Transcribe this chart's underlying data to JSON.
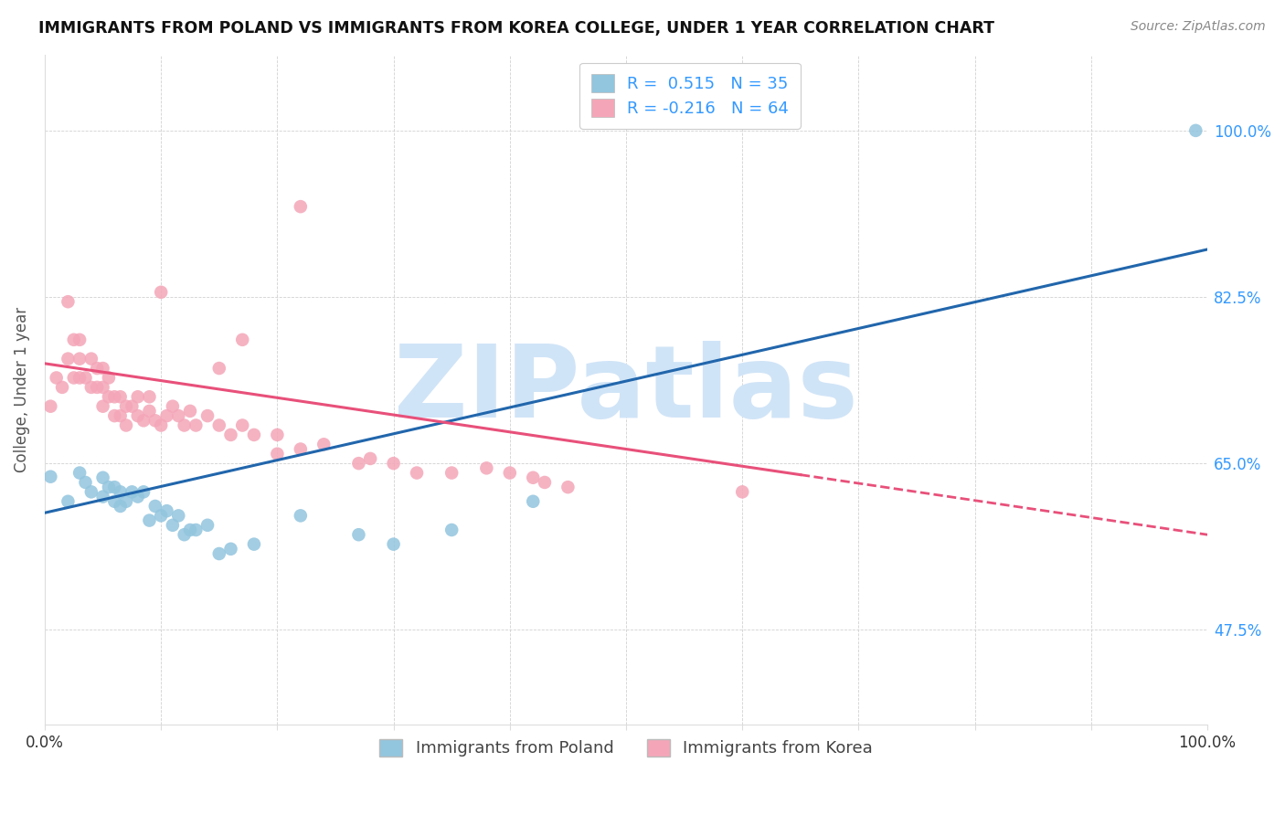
{
  "title": "IMMIGRANTS FROM POLAND VS IMMIGRANTS FROM KOREA COLLEGE, UNDER 1 YEAR CORRELATION CHART",
  "source": "Source: ZipAtlas.com",
  "ylabel": "College, Under 1 year",
  "ylabel_ticks": [
    "47.5%",
    "65.0%",
    "82.5%",
    "100.0%"
  ],
  "ylabel_tick_values": [
    0.475,
    0.65,
    0.825,
    1.0
  ],
  "xmin": 0.0,
  "xmax": 1.0,
  "ymin": 0.375,
  "ymax": 1.08,
  "R_poland": 0.515,
  "N_poland": 35,
  "R_korea": -0.216,
  "N_korea": 64,
  "color_poland": "#92c5de",
  "color_korea": "#f4a6b8",
  "color_poland_line": "#2166ac",
  "color_korea_line": "#e8507a",
  "watermark_color": "#d0e4f7",
  "poland_x": [
    0.005,
    0.02,
    0.03,
    0.035,
    0.04,
    0.05,
    0.05,
    0.055,
    0.06,
    0.06,
    0.065,
    0.065,
    0.07,
    0.075,
    0.08,
    0.085,
    0.09,
    0.095,
    0.1,
    0.105,
    0.11,
    0.115,
    0.12,
    0.125,
    0.13,
    0.14,
    0.15,
    0.16,
    0.18,
    0.22,
    0.27,
    0.3,
    0.35,
    0.42,
    0.99
  ],
  "poland_y": [
    0.636,
    0.61,
    0.64,
    0.63,
    0.62,
    0.615,
    0.635,
    0.625,
    0.61,
    0.625,
    0.605,
    0.62,
    0.61,
    0.62,
    0.615,
    0.62,
    0.59,
    0.605,
    0.595,
    0.6,
    0.585,
    0.595,
    0.575,
    0.58,
    0.58,
    0.585,
    0.555,
    0.56,
    0.565,
    0.595,
    0.575,
    0.565,
    0.58,
    0.61,
    1.0
  ],
  "korea_x": [
    0.005,
    0.01,
    0.015,
    0.02,
    0.02,
    0.025,
    0.025,
    0.03,
    0.03,
    0.03,
    0.035,
    0.04,
    0.04,
    0.045,
    0.045,
    0.05,
    0.05,
    0.05,
    0.055,
    0.055,
    0.06,
    0.06,
    0.065,
    0.065,
    0.07,
    0.07,
    0.075,
    0.08,
    0.08,
    0.085,
    0.09,
    0.09,
    0.095,
    0.1,
    0.105,
    0.11,
    0.115,
    0.12,
    0.125,
    0.13,
    0.14,
    0.15,
    0.16,
    0.17,
    0.18,
    0.2,
    0.22,
    0.24,
    0.27,
    0.28,
    0.3,
    0.32,
    0.35,
    0.38,
    0.4,
    0.42,
    0.43,
    0.45,
    0.15,
    0.2,
    0.1,
    0.17,
    0.22,
    0.6
  ],
  "korea_y": [
    0.71,
    0.74,
    0.73,
    0.76,
    0.82,
    0.74,
    0.78,
    0.74,
    0.76,
    0.78,
    0.74,
    0.73,
    0.76,
    0.73,
    0.75,
    0.71,
    0.73,
    0.75,
    0.72,
    0.74,
    0.7,
    0.72,
    0.7,
    0.72,
    0.69,
    0.71,
    0.71,
    0.7,
    0.72,
    0.695,
    0.705,
    0.72,
    0.695,
    0.69,
    0.7,
    0.71,
    0.7,
    0.69,
    0.705,
    0.69,
    0.7,
    0.69,
    0.68,
    0.69,
    0.68,
    0.66,
    0.665,
    0.67,
    0.65,
    0.655,
    0.65,
    0.64,
    0.64,
    0.645,
    0.64,
    0.635,
    0.63,
    0.625,
    0.75,
    0.68,
    0.83,
    0.78,
    0.92,
    0.62
  ],
  "grid_color": "#cccccc",
  "poland_line_start_y": 0.598,
  "poland_line_end_y": 0.875,
  "korea_line_start_y": 0.755,
  "korea_line_end_y": 0.575
}
